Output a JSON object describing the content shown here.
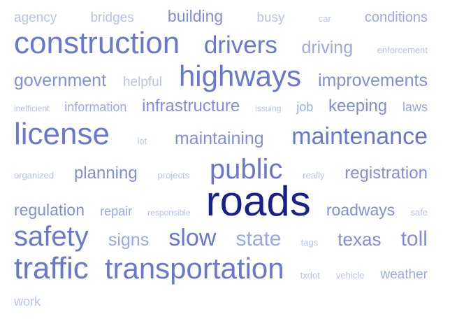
{
  "word_cloud": {
    "lines": [
      [
        "agency",
        "bridges",
        "building",
        "busy",
        "car",
        "conditions"
      ],
      [
        "construction",
        "drivers",
        "driving",
        "enforcement"
      ],
      [
        "government",
        "helpful",
        "highways",
        "improvements"
      ],
      [
        "inefficient",
        "information",
        "infrastructure",
        "issuing",
        "job",
        "keeping",
        "laws"
      ],
      [
        "license",
        "lot",
        "maintaining",
        "maintenance"
      ],
      [
        "organized",
        "planning",
        "projects",
        "public",
        "really",
        "registration"
      ],
      [
        "regulation",
        "repair",
        "responsible",
        "roads",
        "roadways",
        "safe"
      ],
      [
        "safety",
        "signs",
        "slow",
        "state",
        "tags",
        "texas",
        "toll"
      ],
      [
        "traffic",
        "transportation",
        "txdot",
        "vehicle",
        "weather"
      ],
      [
        "work"
      ]
    ]
  }
}
